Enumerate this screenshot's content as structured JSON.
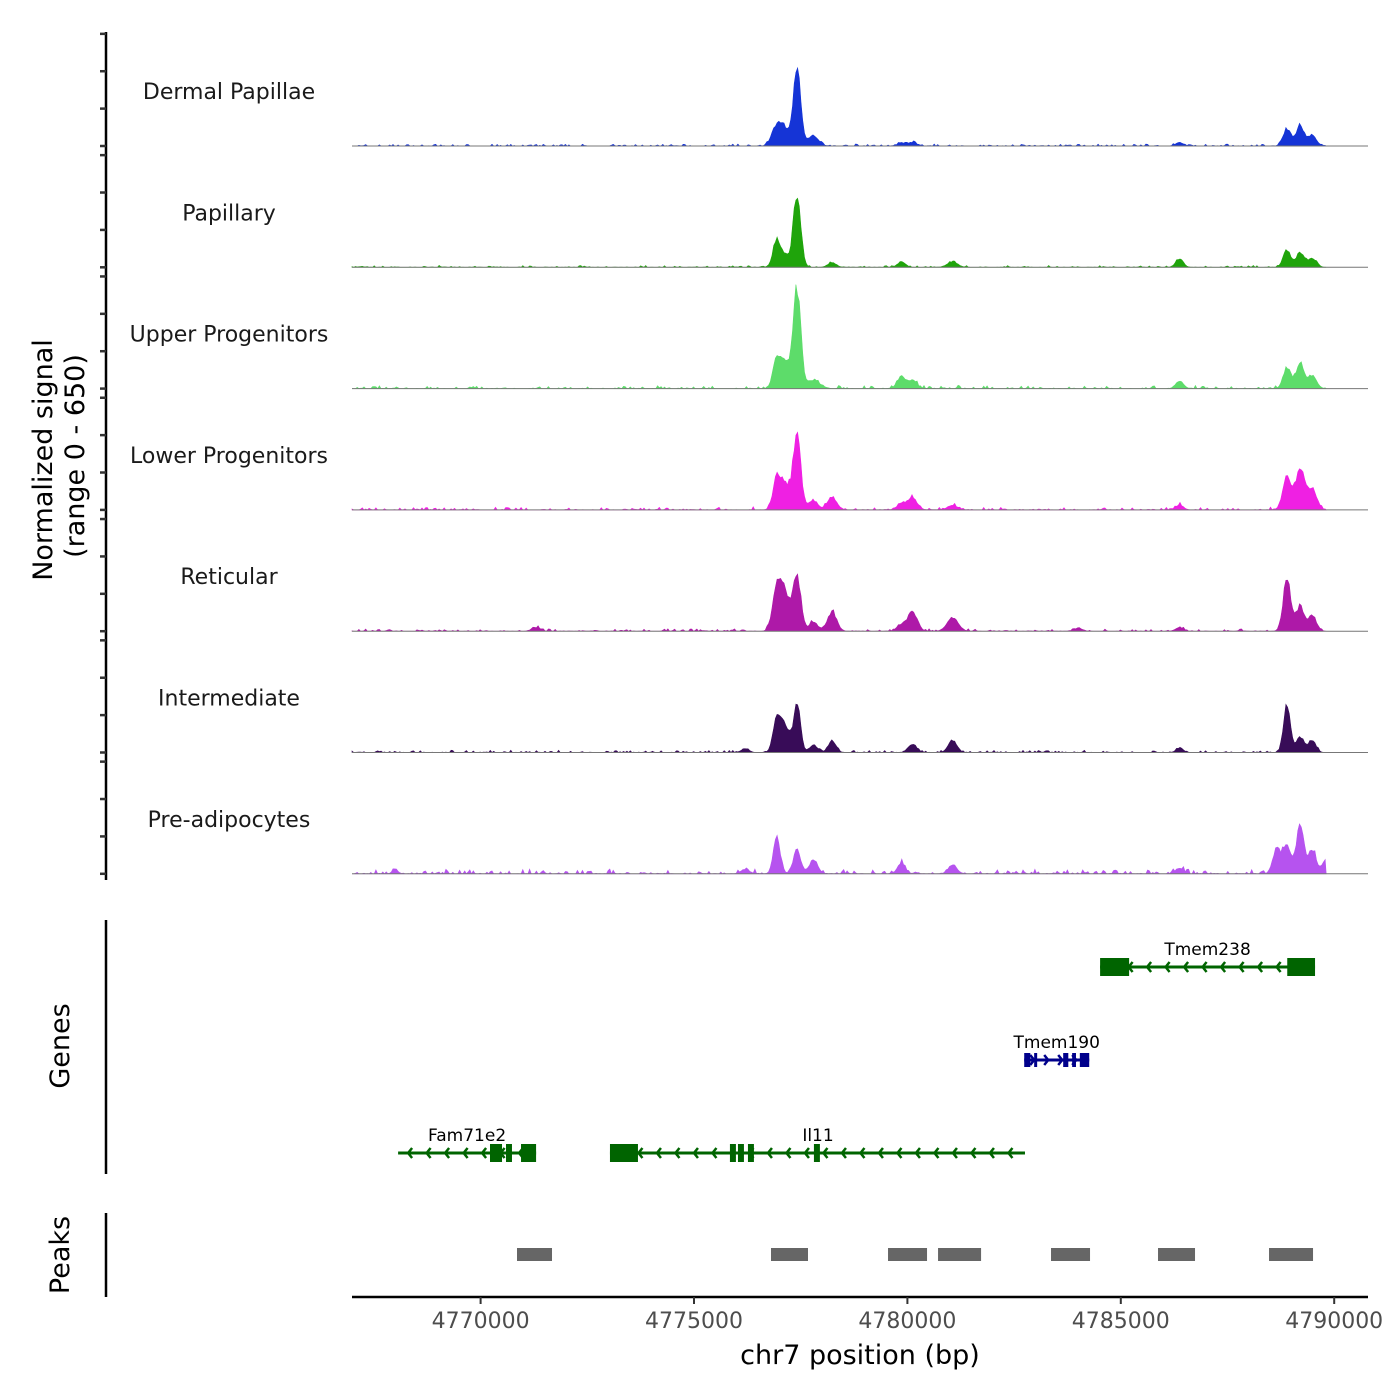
{
  "chart_data": {
    "type": "area",
    "title": "",
    "chromosome": "chr7",
    "xlabel": "chr7 position (bp)",
    "ylabel": "Normalized signal",
    "ylabel_sub": "(range 0 - 650)",
    "ylim": [
      0,
      650
    ],
    "xlim": [
      4766989,
      4790791
    ],
    "signal_range": [
      4766988,
      4789812
    ],
    "x_ticks": [
      4770000,
      4775000,
      4780000,
      4785000,
      4790000
    ],
    "x_tick_labels": [
      "4770000",
      "4775000",
      "4780000",
      "4785000",
      "4790000"
    ],
    "y_ticks_per_track": [
      0,
      200,
      400,
      600
    ],
    "tracks": [
      {
        "name": "Dermal Papillae",
        "color": "#1534d6",
        "noise": 10,
        "peaks": [
          [
            4777412,
            446,
            90
          ],
          [
            4776941,
            124,
            110
          ],
          [
            4777140,
            86,
            90
          ],
          [
            4777800,
            60,
            120
          ],
          [
            4779859,
            15,
            100
          ],
          [
            4780118,
            20,
            100
          ],
          [
            4786376,
            20,
            90
          ],
          [
            4788894,
            100,
            90
          ],
          [
            4789200,
            113,
            90
          ],
          [
            4789482,
            60,
            100
          ]
        ]
      },
      {
        "name": "Papillary",
        "color": "#1fa40b",
        "noise": 9,
        "peaks": [
          [
            4777412,
            414,
            90
          ],
          [
            4776941,
            161,
            90
          ],
          [
            4777140,
            60,
            90
          ],
          [
            4778235,
            27,
            100
          ],
          [
            4779859,
            32,
            90
          ],
          [
            4781059,
            32,
            120
          ],
          [
            4786376,
            48,
            90
          ],
          [
            4788894,
            97,
            90
          ],
          [
            4789200,
            86,
            90
          ],
          [
            4789482,
            54,
            100
          ]
        ]
      },
      {
        "name": "Upper Progenitors",
        "color": "#5ddc6a",
        "noise": 14,
        "peaks": [
          [
            4777412,
            575,
            90
          ],
          [
            4776941,
            167,
            90
          ],
          [
            4777140,
            140,
            100
          ],
          [
            4777800,
            48,
            150
          ],
          [
            4779859,
            65,
            100
          ],
          [
            4780118,
            48,
            100
          ],
          [
            4786376,
            43,
            90
          ],
          [
            4788894,
            124,
            90
          ],
          [
            4789200,
            150,
            90
          ],
          [
            4789482,
            75,
            100
          ]
        ]
      },
      {
        "name": "Lower Progenitors",
        "color": "#ef20e3",
        "noise": 14,
        "peaks": [
          [
            4777412,
            452,
            90
          ],
          [
            4776941,
            183,
            90
          ],
          [
            4777140,
            145,
            100
          ],
          [
            4778235,
            75,
            110
          ],
          [
            4777800,
            54,
            100
          ],
          [
            4780118,
            70,
            110
          ],
          [
            4779859,
            38,
            100
          ],
          [
            4781059,
            27,
            120
          ],
          [
            4786376,
            27,
            90
          ],
          [
            4788894,
            188,
            100
          ],
          [
            4789200,
            237,
            100
          ],
          [
            4789482,
            124,
            110
          ]
        ]
      },
      {
        "name": "Reticular",
        "color": "#ae19a8",
        "noise": 12,
        "peaks": [
          [
            4777412,
            333,
            90
          ],
          [
            4776941,
            242,
            100
          ],
          [
            4777140,
            200,
            110
          ],
          [
            4778235,
            108,
            110
          ],
          [
            4777800,
            54,
            100
          ],
          [
            4780118,
            113,
            110
          ],
          [
            4779859,
            38,
            100
          ],
          [
            4781059,
            80,
            130
          ],
          [
            4771300,
            22,
            100
          ],
          [
            4786376,
            22,
            90
          ],
          [
            4784000,
            16,
            100
          ],
          [
            4788894,
            301,
            90
          ],
          [
            4789200,
            134,
            90
          ],
          [
            4789482,
            91,
            100
          ]
        ]
      },
      {
        "name": "Intermediate",
        "color": "#380c58",
        "noise": 11,
        "peaks": [
          [
            4777412,
            285,
            80
          ],
          [
            4776941,
            188,
            90
          ],
          [
            4777140,
            150,
            100
          ],
          [
            4778235,
            65,
            90
          ],
          [
            4777800,
            43,
            100
          ],
          [
            4780118,
            48,
            100
          ],
          [
            4781059,
            70,
            100
          ],
          [
            4786376,
            27,
            80
          ],
          [
            4776200,
            22,
            90
          ],
          [
            4788894,
            274,
            80
          ],
          [
            4789200,
            86,
            90
          ],
          [
            4789482,
            70,
            90
          ]
        ]
      },
      {
        "name": "Pre-adipocytes",
        "color": "#b653ef",
        "noise": 22,
        "peaks": [
          [
            4776941,
            210,
            80
          ],
          [
            4777412,
            129,
            90
          ],
          [
            4777800,
            81,
            100
          ],
          [
            4779859,
            65,
            90
          ],
          [
            4781059,
            54,
            100
          ],
          [
            4786376,
            32,
            90
          ],
          [
            4768000,
            22,
            70
          ],
          [
            4776200,
            27,
            100
          ],
          [
            4788650,
            145,
            90
          ],
          [
            4788894,
            161,
            90
          ],
          [
            4789200,
            269,
            90
          ],
          [
            4789482,
            134,
            90
          ],
          [
            4789780,
            70,
            80
          ]
        ]
      }
    ],
    "genes_label": "Genes",
    "genes": [
      {
        "name": "Tmem238",
        "strand": "-",
        "color": "#006400",
        "row": 0,
        "start": 4784515,
        "end": 4789551,
        "exons": [
          [
            4784515,
            4785195
          ],
          [
            4788900,
            4789551
          ]
        ]
      },
      {
        "name": "Tmem190",
        "strand": "+",
        "color": "#00008b",
        "row": 1,
        "start": 4782737,
        "end": 4784260,
        "exons": [
          [
            4782737,
            4782880
          ],
          [
            4782970,
            4783020
          ],
          [
            4783650,
            4783770
          ],
          [
            4783860,
            4783950
          ],
          [
            4784040,
            4784260
          ]
        ]
      },
      {
        "name": "Fam71e2",
        "strand": "-",
        "color": "#006400",
        "row": 2,
        "start": 4768067,
        "end": 4771300,
        "exons": [
          [
            4770220,
            4770502
          ],
          [
            4770595,
            4770735
          ],
          [
            4770947,
            4771300
          ]
        ]
      },
      {
        "name": "Il11",
        "strand": "-",
        "color": "#006400",
        "row": 2,
        "start": 4773031,
        "end": 4782755,
        "exons": [
          [
            4773031,
            4773687
          ],
          [
            4775842,
            4775982
          ],
          [
            4776030,
            4776170
          ],
          [
            4776264,
            4776404
          ],
          [
            4777810,
            4777950
          ]
        ]
      }
    ],
    "peaks_label": "Peaks",
    "peaks_color": "#666666",
    "peak_regions": [
      [
        4770853,
        4771673
      ],
      [
        4776804,
        4777671
      ],
      [
        4779546,
        4780460
      ],
      [
        4780718,
        4781726
      ],
      [
        4783365,
        4784279
      ],
      [
        4785872,
        4786739
      ],
      [
        4788473,
        4789504
      ]
    ]
  }
}
